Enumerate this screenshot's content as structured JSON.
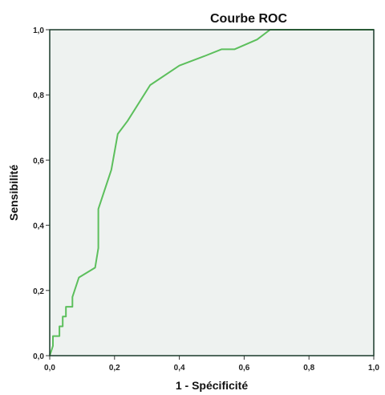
{
  "chart_data": {
    "type": "line",
    "title": "Courbe ROC",
    "xlabel": "1 - Spécificité",
    "ylabel": "Sensibilité",
    "xlim": [
      0,
      1
    ],
    "ylim": [
      0,
      1
    ],
    "x_ticks": [
      "0,0",
      "0,2",
      "0,4",
      "0,6",
      "0,8",
      "1,0"
    ],
    "y_ticks": [
      "0,0",
      "0,2",
      "0,4",
      "0,6",
      "0,8",
      "1,0"
    ],
    "grid": false,
    "colors": {
      "curve": "#5cbf5c",
      "plot_background": "#eef2f0",
      "frame": "#1a3a2a"
    },
    "series": [
      {
        "x": [
          0,
          0.01,
          0.01,
          0.03,
          0.03,
          0.04,
          0.04,
          0.05,
          0.05,
          0.07,
          0.07,
          0.09,
          0.14,
          0.15,
          0.15,
          0.19,
          0.21,
          0.24,
          0.31,
          0.4,
          0.48,
          0.53,
          0.57,
          0.64,
          0.68,
          1.0
        ],
        "y": [
          0,
          0.03,
          0.06,
          0.06,
          0.09,
          0.09,
          0.12,
          0.12,
          0.15,
          0.15,
          0.18,
          0.24,
          0.27,
          0.33,
          0.45,
          0.57,
          0.68,
          0.72,
          0.83,
          0.89,
          0.92,
          0.94,
          0.94,
          0.97,
          1.0,
          1.0
        ]
      }
    ]
  }
}
